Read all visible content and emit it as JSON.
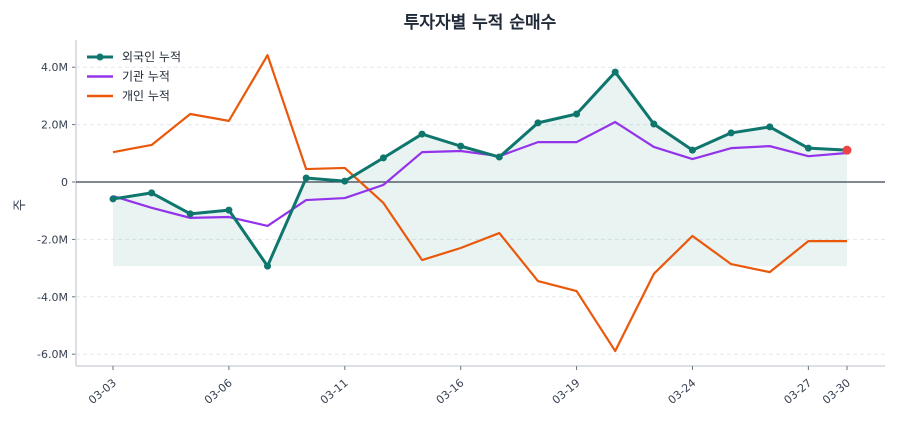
{
  "chart_data": {
    "type": "line",
    "title": "투자자별 누적 순매수",
    "xlabel": "",
    "ylabel": "주",
    "x": [
      "03-03",
      "03-04",
      "03-05",
      "03-06",
      "03-09",
      "03-10",
      "03-11",
      "03-12",
      "03-13",
      "03-16",
      "03-17",
      "03-18",
      "03-19",
      "03-20",
      "03-23",
      "03-24",
      "03-25",
      "03-26",
      "03-27",
      "03-30"
    ],
    "xticks": [
      "03-03",
      "03-06",
      "03-11",
      "03-16",
      "03-19",
      "03-24",
      "03-27",
      "03-30"
    ],
    "yticks": [
      {
        "v": 4000000,
        "label": "4.0M"
      },
      {
        "v": 2000000,
        "label": "2.0M"
      },
      {
        "v": 0,
        "label": "0"
      },
      {
        "v": -2000000,
        "label": "-2.0M"
      },
      {
        "v": -4000000,
        "label": "-4.0M"
      },
      {
        "v": -6000000,
        "label": "-6.0M"
      }
    ],
    "ylim": [
      -6300000,
      4900000
    ],
    "grid": "horizontal-dashed",
    "legend": "top-left",
    "series": [
      {
        "name": "외국인 누적",
        "color": "#0f766e",
        "markers": true,
        "fill_to_min": true,
        "values": [
          -590000,
          -380000,
          -1110000,
          -980000,
          -2930000,
          140000,
          30000,
          840000,
          1670000,
          1250000,
          870000,
          2060000,
          2370000,
          3830000,
          2020000,
          1110000,
          1710000,
          1920000,
          1180000,
          1110000
        ],
        "last_marker_color": "#ef4444"
      },
      {
        "name": "기관 누적",
        "color": "#9333ea",
        "markers": false,
        "values": [
          -490000,
          -900000,
          -1250000,
          -1220000,
          -1530000,
          -630000,
          -560000,
          -100000,
          1040000,
          1080000,
          900000,
          1390000,
          1390000,
          2090000,
          1220000,
          800000,
          1180000,
          1250000,
          900000,
          1010000
        ]
      },
      {
        "name": "개인 누적",
        "color": "#ea580c",
        "markers": false,
        "values": [
          1040000,
          1290000,
          2370000,
          2130000,
          4420000,
          450000,
          490000,
          -730000,
          -2720000,
          -2300000,
          -1780000,
          -3450000,
          -3800000,
          -5890000,
          -3200000,
          -1880000,
          -2860000,
          -3140000,
          -2060000,
          -2060000
        ]
      }
    ]
  }
}
